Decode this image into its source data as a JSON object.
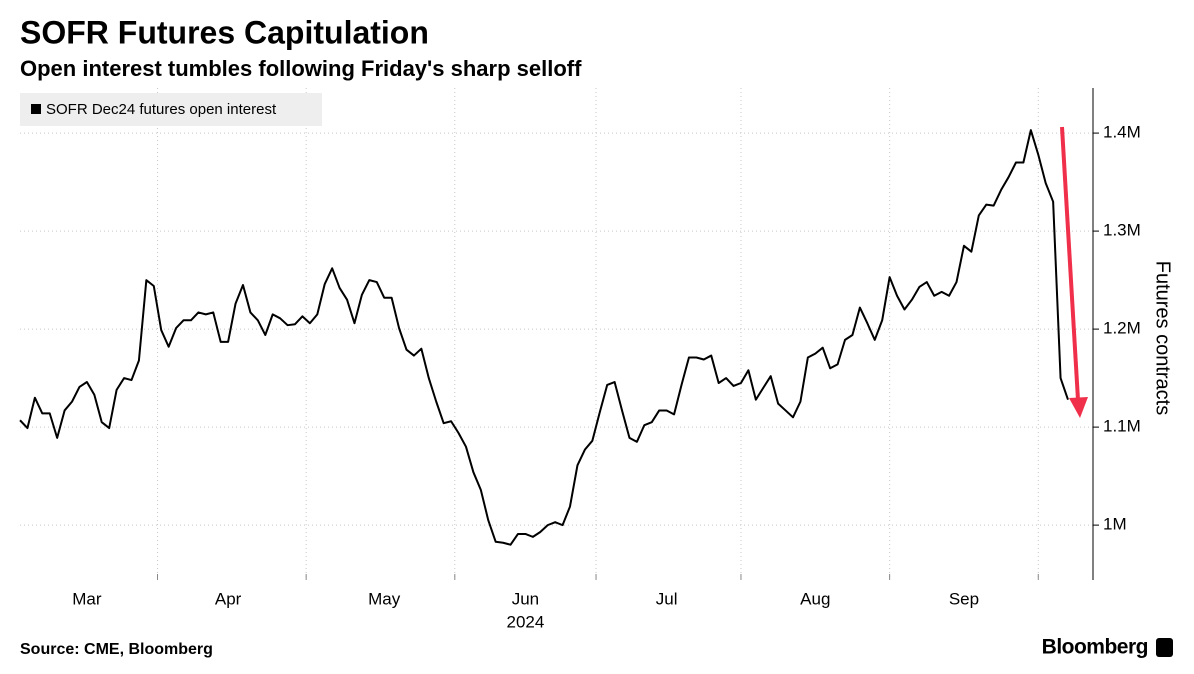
{
  "chart_data": {
    "type": "line",
    "title": "SOFR Futures Capitulation",
    "subtitle": "Open interest tumbles following Friday's sharp selloff",
    "y_label": "Futures contracts",
    "x_sublabel": "2024",
    "source": "Source: CME, Bloomberg",
    "brand": "Bloomberg",
    "grid": true,
    "legend": "top-left",
    "categories": [
      null,
      null,
      null,
      null,
      null,
      null,
      null,
      null,
      null,
      "Mar",
      null,
      null,
      null,
      null,
      null,
      null,
      null,
      null,
      null,
      null,
      null,
      null,
      null,
      null,
      null,
      null,
      null,
      null,
      "Apr",
      null,
      null,
      null,
      null,
      null,
      null,
      null,
      null,
      null,
      null,
      null,
      null,
      null,
      null,
      null,
      null,
      null,
      null,
      null,
      null,
      "May",
      null,
      null,
      null,
      null,
      null,
      null,
      null,
      null,
      null,
      null,
      null,
      null,
      null,
      null,
      null,
      null,
      null,
      null,
      "Jun",
      null,
      null,
      null,
      null,
      null,
      null,
      null,
      null,
      null,
      null,
      null,
      null,
      null,
      null,
      null,
      null,
      null,
      null,
      "Jul",
      null,
      null,
      null,
      null,
      null,
      null,
      null,
      null,
      null,
      null,
      null,
      null,
      null,
      null,
      null,
      null,
      null,
      null,
      null,
      "Aug",
      null,
      null,
      null,
      null,
      null,
      null,
      null,
      null,
      null,
      null,
      null,
      null,
      null,
      null,
      null,
      null,
      null,
      null,
      null,
      "Sep",
      null,
      null,
      null,
      null,
      null,
      null,
      null,
      null,
      null,
      null,
      null,
      null,
      null,
      null
    ],
    "series": [
      {
        "name": "SOFR Dec24 futures open interest",
        "color": "#000000",
        "values": [
          1107000,
          1099000,
          1130000,
          1114000,
          1114000,
          1089000,
          1117000,
          1126000,
          1141000,
          1146000,
          1133000,
          1105000,
          1099000,
          1138000,
          1150000,
          1148000,
          1168000,
          1250000,
          1244000,
          1199000,
          1182000,
          1201000,
          1209000,
          1209000,
          1217000,
          1215000,
          1217000,
          1187000,
          1187000,
          1226000,
          1245000,
          1217000,
          1209000,
          1194000,
          1215000,
          1211000,
          1204000,
          1205000,
          1213000,
          1206000,
          1215000,
          1246000,
          1262000,
          1242000,
          1230000,
          1206000,
          1235000,
          1250000,
          1248000,
          1232000,
          1232000,
          1201000,
          1179000,
          1173000,
          1180000,
          1150000,
          1126000,
          1104000,
          1106000,
          1094000,
          1080000,
          1054000,
          1036000,
          1005000,
          983000,
          982000,
          980000,
          991000,
          991000,
          988000,
          993000,
          1000000,
          1003000,
          1000000,
          1019000,
          1061000,
          1077000,
          1086000,
          1115000,
          1143000,
          1146000,
          1117000,
          1089000,
          1085000,
          1102000,
          1105000,
          1117000,
          1117000,
          1113000,
          1143000,
          1171000,
          1171000,
          1169000,
          1173000,
          1145000,
          1150000,
          1142000,
          1145000,
          1158000,
          1128000,
          1140000,
          1152000,
          1124000,
          1117000,
          1110000,
          1126000,
          1171000,
          1175000,
          1181000,
          1160000,
          1164000,
          1189000,
          1194000,
          1222000,
          1206000,
          1189000,
          1209000,
          1253000,
          1234000,
          1220000,
          1230000,
          1243000,
          1248000,
          1234000,
          1238000,
          1234000,
          1248000,
          1285000,
          1279000,
          1316000,
          1327000,
          1326000,
          1342000,
          1355000,
          1370000,
          1370000,
          1403000,
          1378000,
          1349000,
          1330000,
          1150000,
          1128000
        ]
      }
    ],
    "ylim": [
      944000,
      1446000
    ],
    "yticks": [
      {
        "value": 1000000,
        "label": "1M"
      },
      {
        "value": 1100000,
        "label": "1.1M"
      },
      {
        "value": 1200000,
        "label": "1.2M"
      },
      {
        "value": 1300000,
        "label": "1.3M"
      },
      {
        "value": 1400000,
        "label": "1.4M"
      }
    ]
  }
}
